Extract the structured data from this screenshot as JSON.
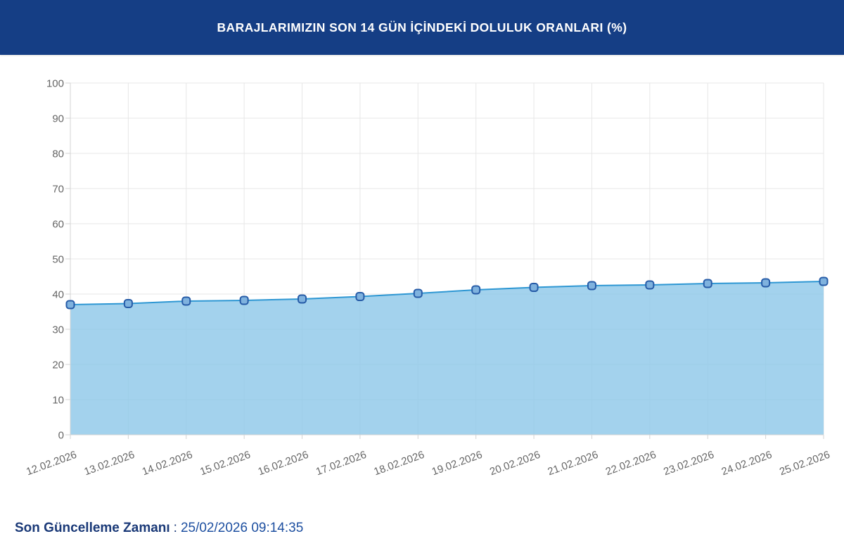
{
  "header": {
    "title": "BARAJLARIMIZIN SON 14 GÜN İÇİNDEKİ DOLULUK ORANLARI (%)",
    "bg_color": "#153e85",
    "text_color": "#ffffff"
  },
  "chart_data": {
    "type": "area",
    "title": "BARAJLARIMIZIN SON 14 GÜN İÇİNDEKİ DOLULUK ORANLARI (%)",
    "x": [
      "12.02.2026",
      "13.02.2026",
      "14.02.2026",
      "15.02.2026",
      "16.02.2026",
      "17.02.2026",
      "18.02.2026",
      "19.02.2026",
      "20.02.2026",
      "21.02.2026",
      "22.02.2026",
      "23.02.2026",
      "24.02.2026",
      "25.02.2026"
    ],
    "values": [
      37.0,
      37.3,
      38.0,
      38.2,
      38.6,
      39.3,
      40.2,
      41.2,
      41.9,
      42.4,
      42.6,
      43.0,
      43.2,
      43.6
    ],
    "xlabel": "",
    "ylabel": "",
    "ylim": [
      0,
      100
    ],
    "ytick_step": 10,
    "grid": true,
    "legend": "none",
    "colors": {
      "line": "#2e97d3",
      "fill": "rgba(140,199,232,0.8)",
      "marker_fill": "#7fb2de",
      "marker_stroke": "#265ba7",
      "gridline": "#e7e7e7",
      "axis": "#d3d3d3",
      "tick_text": "#666666"
    }
  },
  "footer": {
    "label": "Son Güncelleme Zamanı",
    "separator": ":",
    "value": "25/02/2026 09:14:35"
  }
}
